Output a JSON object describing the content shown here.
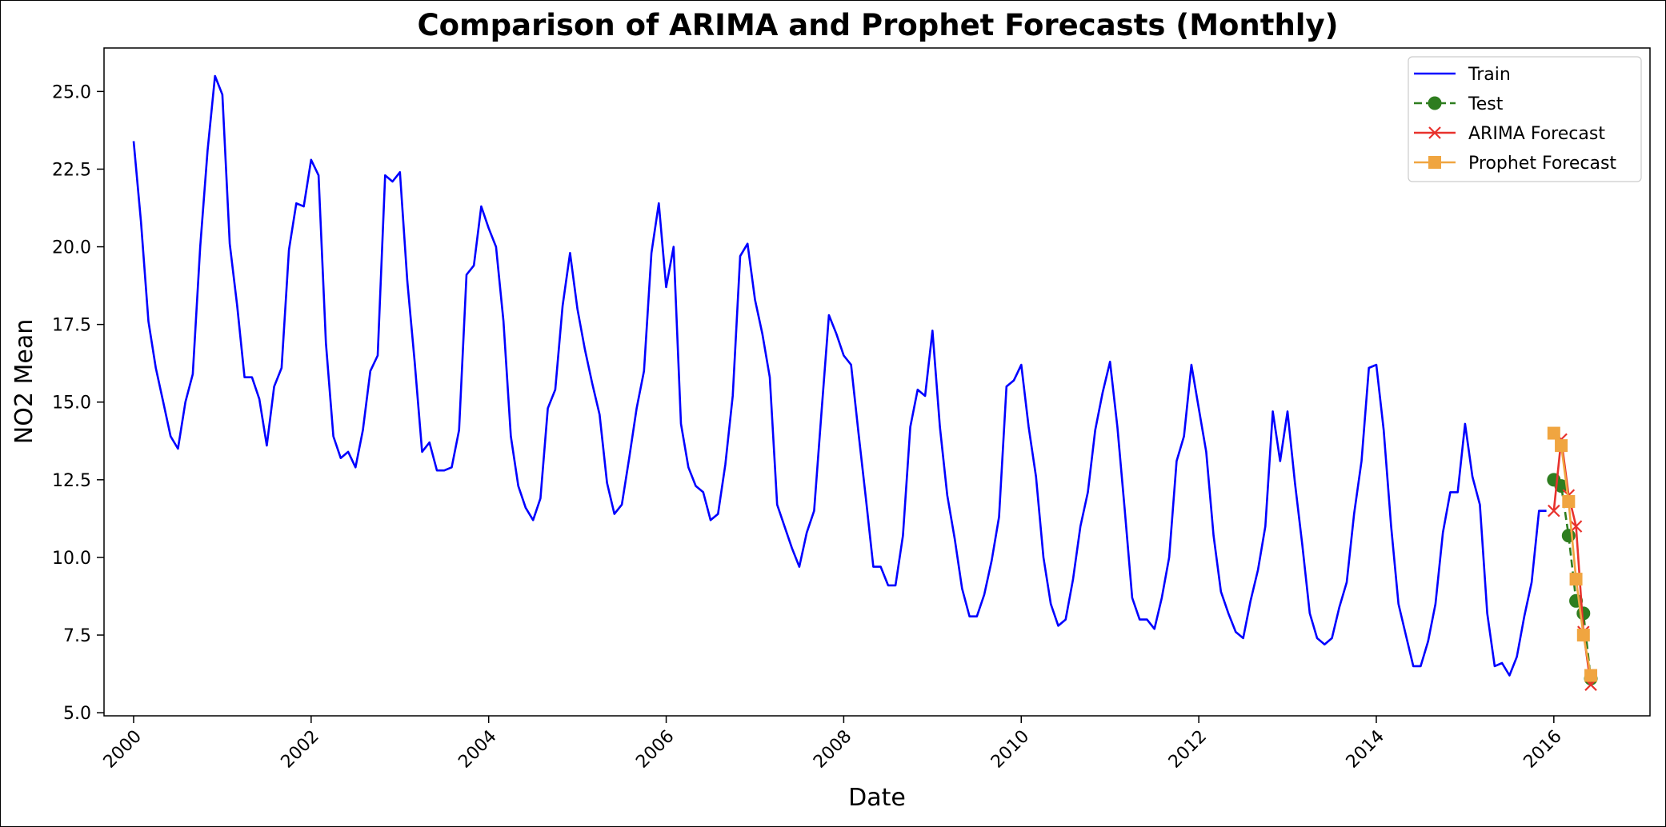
{
  "chart_data": {
    "type": "line",
    "title": "Comparison of ARIMA and Prophet Forecasts (Monthly)",
    "xlabel": "Date",
    "ylabel": "NO2 Mean",
    "xlim": [
      "1999-09",
      "2017-02"
    ],
    "ylim": [
      4.9,
      26.4
    ],
    "x_ticks": [
      "2000",
      "2002",
      "2004",
      "2006",
      "2008",
      "2010",
      "2012",
      "2014",
      "2016"
    ],
    "y_ticks": [
      "5.0",
      "7.5",
      "10.0",
      "12.5",
      "15.0",
      "17.5",
      "20.0",
      "22.5",
      "25.0"
    ],
    "grid": false,
    "legend_position": "top-right",
    "series": [
      {
        "name": "Train",
        "color": "#0000ff",
        "style": "solid",
        "marker": "none",
        "x": [
          "2000-01",
          "2000-02",
          "2000-03",
          "2000-04",
          "2000-05",
          "2000-06",
          "2000-07",
          "2000-08",
          "2000-09",
          "2000-10",
          "2000-11",
          "2000-12",
          "2001-01",
          "2001-02",
          "2001-03",
          "2001-04",
          "2001-05",
          "2001-06",
          "2001-07",
          "2001-08",
          "2001-09",
          "2001-10",
          "2001-11",
          "2001-12",
          "2002-01",
          "2002-02",
          "2002-03",
          "2002-04",
          "2002-05",
          "2002-06",
          "2002-07",
          "2002-08",
          "2002-09",
          "2002-10",
          "2002-11",
          "2002-12",
          "2003-01",
          "2003-02",
          "2003-03",
          "2003-04",
          "2003-05",
          "2003-06",
          "2003-07",
          "2003-08",
          "2003-09",
          "2003-10",
          "2003-11",
          "2003-12",
          "2004-01",
          "2004-02",
          "2004-03",
          "2004-04",
          "2004-05",
          "2004-06",
          "2004-07",
          "2004-08",
          "2004-09",
          "2004-10",
          "2004-11",
          "2004-12",
          "2005-01",
          "2005-02",
          "2005-03",
          "2005-04",
          "2005-05",
          "2005-06",
          "2005-07",
          "2005-08",
          "2005-09",
          "2005-10",
          "2005-11",
          "2005-12",
          "2006-01",
          "2006-02",
          "2006-03",
          "2006-04",
          "2006-05",
          "2006-06",
          "2006-07",
          "2006-08",
          "2006-09",
          "2006-10",
          "2006-11",
          "2006-12",
          "2007-01",
          "2007-02",
          "2007-03",
          "2007-04",
          "2007-05",
          "2007-06",
          "2007-07",
          "2007-08",
          "2007-09",
          "2007-10",
          "2007-11",
          "2007-12",
          "2008-01",
          "2008-02",
          "2008-03",
          "2008-04",
          "2008-05",
          "2008-06",
          "2008-07",
          "2008-08",
          "2008-09",
          "2008-10",
          "2008-11",
          "2008-12",
          "2009-01",
          "2009-02",
          "2009-03",
          "2009-04",
          "2009-05",
          "2009-06",
          "2009-07",
          "2009-08",
          "2009-09",
          "2009-10",
          "2009-11",
          "2009-12",
          "2010-01",
          "2010-02",
          "2010-03",
          "2010-04",
          "2010-05",
          "2010-06",
          "2010-07",
          "2010-08",
          "2010-09",
          "2010-10",
          "2010-11",
          "2010-12",
          "2011-01",
          "2011-02",
          "2011-03",
          "2011-04",
          "2011-05",
          "2011-06",
          "2011-07",
          "2011-08",
          "2011-09",
          "2011-10",
          "2011-11",
          "2011-12",
          "2012-01",
          "2012-02",
          "2012-03",
          "2012-04",
          "2012-05",
          "2012-06",
          "2012-07",
          "2012-08",
          "2012-09",
          "2012-10",
          "2012-11",
          "2012-12",
          "2013-01",
          "2013-02",
          "2013-03",
          "2013-04",
          "2013-05",
          "2013-06",
          "2013-07",
          "2013-08",
          "2013-09",
          "2013-10",
          "2013-11",
          "2013-12",
          "2014-01",
          "2014-02",
          "2014-03",
          "2014-04",
          "2014-05",
          "2014-06",
          "2014-07",
          "2014-08",
          "2014-09",
          "2014-10",
          "2014-11",
          "2014-12",
          "2015-01",
          "2015-02",
          "2015-03",
          "2015-04",
          "2015-05",
          "2015-06",
          "2015-07",
          "2015-08",
          "2015-09",
          "2015-10",
          "2015-11",
          "2015-12"
        ],
        "values": [
          23.4,
          20.8,
          17.6,
          16.1,
          15.0,
          13.9,
          13.5,
          15.0,
          15.9,
          20.0,
          23.1,
          25.5,
          24.9,
          20.1,
          18.1,
          15.8,
          15.8,
          15.1,
          13.6,
          15.5,
          16.1,
          19.9,
          21.4,
          21.3,
          22.8,
          22.3,
          16.9,
          13.9,
          13.2,
          13.4,
          12.9,
          14.1,
          16.0,
          16.5,
          22.3,
          22.1,
          22.4,
          18.9,
          16.3,
          13.4,
          13.7,
          12.8,
          12.8,
          12.9,
          14.1,
          19.1,
          19.4,
          21.3,
          20.6,
          20.0,
          17.6,
          13.9,
          12.3,
          11.6,
          11.2,
          11.9,
          14.8,
          15.4,
          18.1,
          19.8,
          18.0,
          16.7,
          15.6,
          14.6,
          12.4,
          11.4,
          11.7,
          13.2,
          14.8,
          16.0,
          19.8,
          21.4,
          18.7,
          20.0,
          14.3,
          12.9,
          12.3,
          12.1,
          11.2,
          11.4,
          13.0,
          15.2,
          19.7,
          20.1,
          18.3,
          17.2,
          15.8,
          11.7,
          11.0,
          10.3,
          9.7,
          10.8,
          11.5,
          14.7,
          17.8,
          17.2,
          16.5,
          16.2,
          14.0,
          11.9,
          9.7,
          9.7,
          9.1,
          9.1,
          10.7,
          14.2,
          15.4,
          15.2,
          17.3,
          14.2,
          12.0,
          10.6,
          9.0,
          8.1,
          8.1,
          8.8,
          9.9,
          11.3,
          15.5,
          15.7,
          16.2,
          14.2,
          12.6,
          10.0,
          8.5,
          7.8,
          8.0,
          9.3,
          11.0,
          12.1,
          14.1,
          15.3,
          16.3,
          14.2,
          11.5,
          8.7,
          8.0,
          8.0,
          7.7,
          8.7,
          10.0,
          13.1,
          13.9,
          16.2,
          14.8,
          13.4,
          10.7,
          8.9,
          8.2,
          7.6,
          7.4,
          8.6,
          9.6,
          11.0,
          14.7,
          13.1,
          14.7,
          12.4,
          10.4,
          8.2,
          7.4,
          7.2,
          7.4,
          8.4,
          9.2,
          11.4,
          13.1,
          16.1,
          16.2,
          14.1,
          11.0,
          8.5,
          7.5,
          6.5,
          6.5,
          7.3,
          8.5,
          10.8,
          12.1,
          12.1,
          14.3,
          12.6,
          11.7,
          8.2,
          6.5,
          6.6,
          6.2,
          6.8,
          8.1,
          9.2,
          11.5,
          11.5
        ]
      },
      {
        "name": "Test",
        "color": "#2e7d1f",
        "style": "dashed",
        "marker": "circle",
        "x": [
          "2016-01",
          "2016-02",
          "2016-03",
          "2016-04",
          "2016-05",
          "2016-06"
        ],
        "values": [
          12.5,
          12.3,
          10.7,
          8.6,
          8.2,
          6.1
        ]
      },
      {
        "name": "ARIMA Forecast",
        "color": "#e8322d",
        "style": "solid",
        "marker": "x",
        "x": [
          "2016-01",
          "2016-02",
          "2016-03",
          "2016-04",
          "2016-05",
          "2016-06"
        ],
        "values": [
          11.5,
          13.8,
          12.0,
          11.0,
          7.6,
          5.9
        ]
      },
      {
        "name": "Prophet Forecast",
        "color": "#f0a540",
        "style": "solid",
        "marker": "square",
        "x": [
          "2016-01",
          "2016-02",
          "2016-03",
          "2016-04",
          "2016-05",
          "2016-06"
        ],
        "values": [
          14.0,
          13.6,
          11.8,
          9.3,
          7.5,
          6.2
        ]
      }
    ]
  }
}
